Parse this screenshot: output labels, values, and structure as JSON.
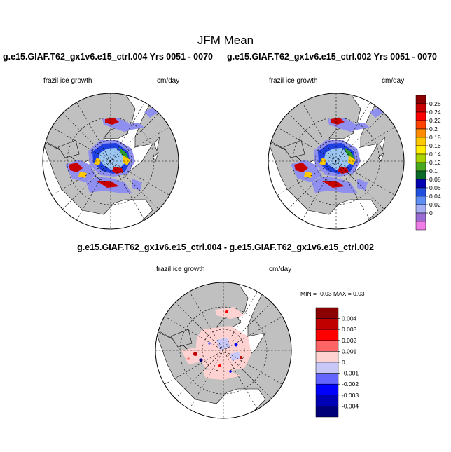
{
  "figure": {
    "title": "JFM Mean",
    "diff_title": "g.e15.GIAF.T62_gx1v6.e15_ctrl.004 - g.e15.GIAF.T62_gx1v6.e15_ctrl.002",
    "minmax": "MIN =  -0.03 MAX =   0.03"
  },
  "panels": [
    {
      "case_title": "g.e15.GIAF.T62_gx1v6.e15_ctrl.004  Yrs 0051 - 0070",
      "variable": "frazil ice growth",
      "units": "cm/day"
    },
    {
      "case_title": "g.e15.GIAF.T62_gx1v6.e15_ctrl.002  Yrs 0051 - 0070",
      "variable": "frazil ice growth",
      "units": "cm/day"
    },
    {
      "variable": "frazil ice growth",
      "units": "cm/day"
    }
  ],
  "chart_data": [
    {
      "type": "heatmap",
      "projection": "north polar stereographic",
      "variable": "frazil ice growth",
      "units": "cm/day",
      "colorbar_levels": [
        "0.26",
        "0.24",
        "0.22",
        "0.2",
        "0.18",
        "0.16",
        "0.14",
        "0.12",
        "0.1",
        "0.08",
        "0.06",
        "0.04",
        "0.02",
        "0"
      ],
      "colorbar_colors": [
        "#8b0000",
        "#c80000",
        "#ff0000",
        "#ff4400",
        "#ff8c00",
        "#ffc800",
        "#ffee00",
        "#a8d200",
        "#48a820",
        "#0c6a28",
        "#0000b4",
        "#2050e0",
        "#5e8ef4",
        "#a8b0f4",
        "#9a6cd4",
        "#f07ce8"
      ],
      "map_colors": {
        "land": "#c0c0c0",
        "ice_low": "#8f8ff0",
        "ice_mid": "#1f3fe0",
        "ice_core": "#9cc6f2",
        "high": "#c80000",
        "mid_high": "#ffc800",
        "green": "#2a9a2a"
      }
    },
    {
      "type": "heatmap",
      "projection": "north polar stereographic",
      "variable": "frazil ice growth",
      "units": "cm/day",
      "note": "shares colorbar with first panel"
    },
    {
      "type": "heatmap",
      "projection": "north polar stereographic",
      "variable": "frazil ice growth difference",
      "units": "cm/day",
      "min": -0.03,
      "max": 0.03,
      "colorbar_levels": [
        "0.004",
        "0.003",
        "0.002",
        "0.001",
        "0",
        "-0.001",
        "-0.002",
        "-0.003",
        "-0.004"
      ],
      "colorbar_colors": [
        "#8b0000",
        "#c00000",
        "#ff0000",
        "#ff6464",
        "#ffd2d2",
        "#c8c8f8",
        "#6464ff",
        "#0000ff",
        "#0000b4",
        "#000078"
      ]
    }
  ]
}
